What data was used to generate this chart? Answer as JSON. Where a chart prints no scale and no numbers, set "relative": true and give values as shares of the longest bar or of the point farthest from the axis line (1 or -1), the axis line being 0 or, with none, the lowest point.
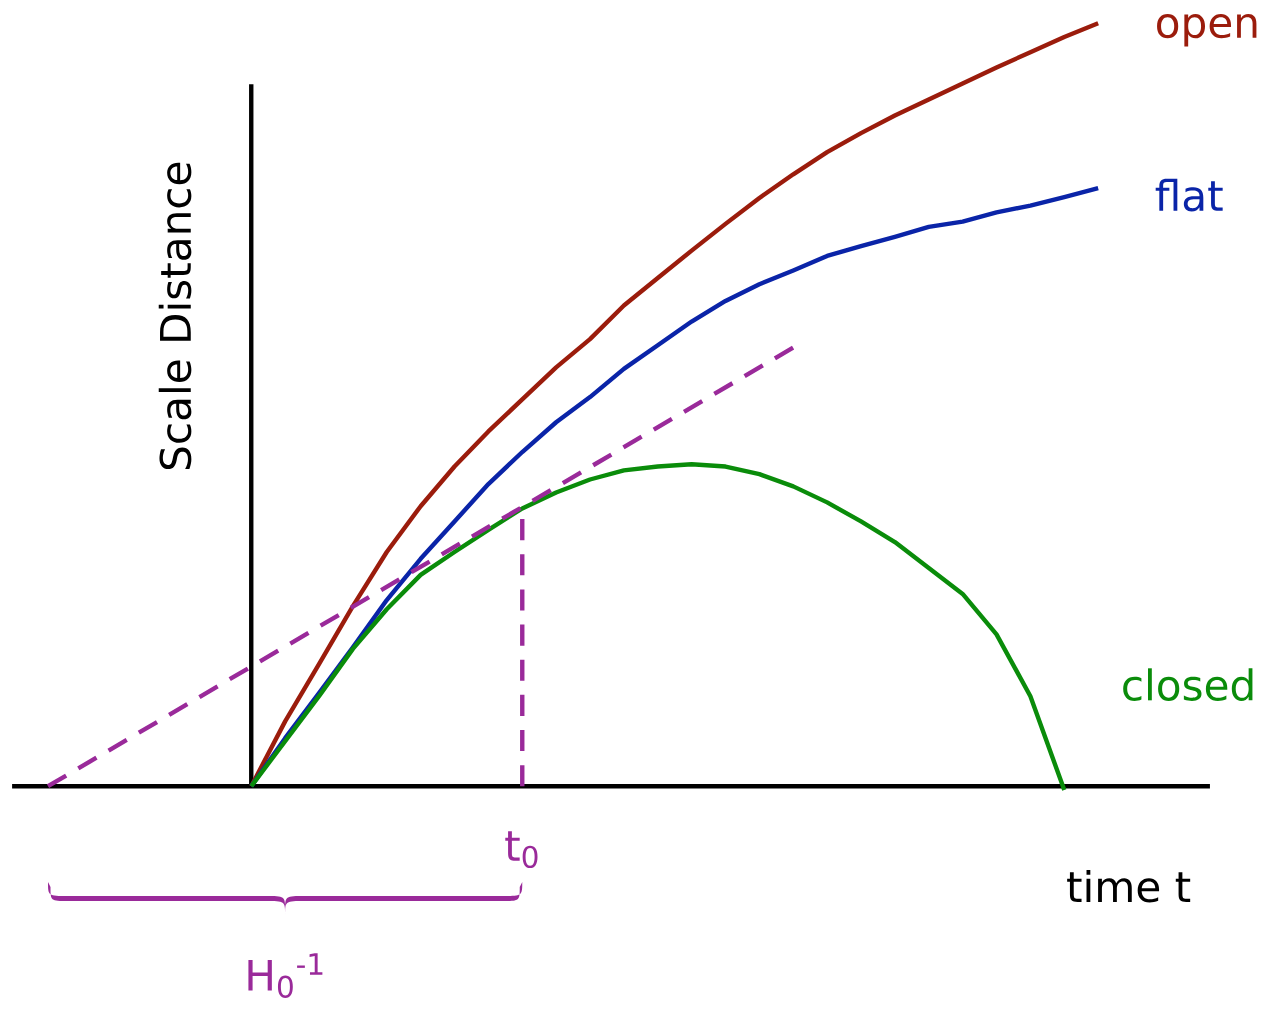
{
  "chart_data": {
    "type": "line",
    "relative": true,
    "xlabel": "time t",
    "ylabel": "Scale Distance",
    "categories": [
      null,
      null,
      null,
      null,
      null,
      null,
      null,
      null,
      null,
      null,
      null,
      null,
      null,
      null,
      null,
      null,
      null,
      null,
      null,
      null,
      null,
      null,
      null,
      null,
      null,
      null,
      null,
      null,
      null,
      null,
      null,
      null
    ],
    "series": [
      {
        "name": "open",
        "color": "#9b1c0c",
        "values": [
          null,
          null,
          null,
          null,
          null,
          null,
          0,
          0.085,
          0.16,
          0.236,
          0.307,
          0.367,
          0.419,
          0.465,
          0.507,
          0.549,
          0.586,
          0.63,
          0.666,
          0.702,
          0.737,
          0.771,
          0.802,
          0.831,
          0.856,
          0.879,
          0.9,
          0.921,
          0.942,
          0.962,
          0.982,
          1.0
        ]
      },
      {
        "name": "flat",
        "color": "#0a24a8",
        "values": [
          null,
          null,
          null,
          null,
          null,
          null,
          0,
          0.063,
          0.122,
          0.182,
          0.244,
          0.298,
          0.347,
          0.396,
          0.438,
          0.477,
          0.51,
          0.547,
          0.578,
          0.609,
          0.636,
          0.658,
          0.676,
          0.695,
          0.708,
          0.72,
          0.733,
          0.74,
          0.752,
          0.761,
          0.772,
          0.784
        ]
      },
      {
        "name": "closed",
        "color": "#0a8c0a",
        "values": [
          null,
          null,
          null,
          null,
          null,
          null,
          0,
          0.059,
          0.118,
          0.18,
          0.232,
          0.277,
          0.307,
          0.336,
          0.364,
          0.385,
          0.402,
          0.414,
          0.419,
          0.422,
          0.419,
          0.409,
          0.393,
          0.372,
          0.347,
          0.32,
          0.286,
          0.252,
          0.199,
          0.118,
          -0.005,
          null
        ]
      },
      {
        "color": "#9a2a9a",
        "line_style": "dashed",
        "values": [
          0,
          null,
          null,
          null,
          null,
          null,
          null,
          null,
          null,
          null,
          null,
          null,
          null,
          null,
          0.366,
          null,
          null,
          null,
          null,
          null,
          null,
          null,
          0.575,
          null,
          null,
          null,
          null,
          null,
          null,
          null,
          null,
          null
        ]
      }
    ],
    "annotations": [
      "t$_{0}$",
      "H$_{0}$$^{-1}$"
    ]
  }
}
